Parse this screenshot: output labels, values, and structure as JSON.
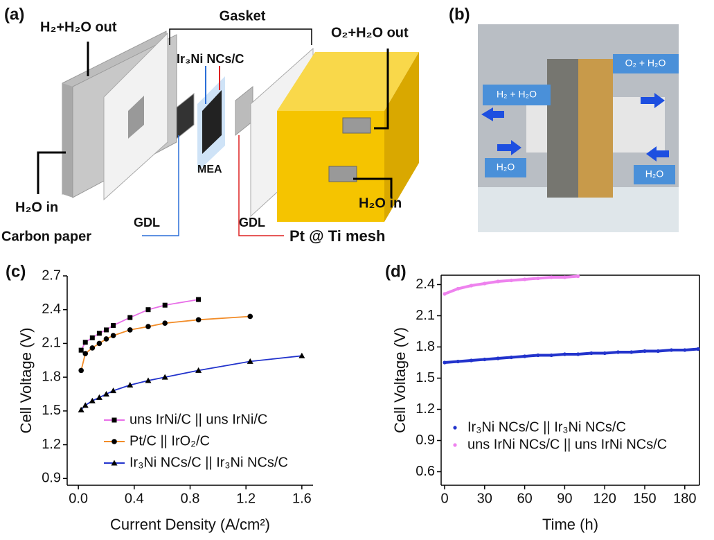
{
  "diagram": {
    "panel_label": "(a)",
    "h2_out": "H₂+H₂O out",
    "gasket": "Gasket",
    "catalyst": "Ir₃Ni NCs/C",
    "o2_out": "O₂+H₂O out",
    "mea": "MEA",
    "h2o_in_left": "H₂O in",
    "gdl_left": "GDL",
    "carbon_paper": "Carbon paper",
    "gdl_right": "GDL",
    "pt_mesh": "Pt @ Ti mesh",
    "h2o_in_right": "H₂O in"
  },
  "photo": {
    "panel_label": "(b)",
    "o2_label": "O₂ + H₂O",
    "h2_label": "H₂ + H₂O",
    "h2o_left": "H₂O",
    "h2o_right": "H₂O"
  },
  "chart_data": [
    {
      "type": "line",
      "panel_label": "(c)",
      "x_label": "Current Density (A/cm²)",
      "y_label": "Cell Voltage (V)",
      "xlim": [
        -0.08,
        1.68
      ],
      "ylim": [
        0.84,
        2.7
      ],
      "xticks": [
        {
          "value": 0,
          "label": "0.0"
        },
        0.4,
        0.8,
        1.2,
        1.6
      ],
      "yticks": [
        0.9,
        1.2,
        1.5,
        1.8,
        2.1,
        2.4,
        2.7
      ],
      "box": false,
      "series": [
        {
          "name": "uns IrNi/C || uns IrNi/C",
          "color": "#e86ee8",
          "marker": "square",
          "x": [
            0.02,
            0.05,
            0.1,
            0.15,
            0.2,
            0.25,
            0.37,
            0.5,
            0.62,
            0.86
          ],
          "values": [
            2.04,
            2.11,
            2.15,
            2.19,
            2.22,
            2.26,
            2.33,
            2.4,
            2.44,
            2.49
          ]
        },
        {
          "name": "Pt/C || IrO₂/C",
          "color": "#f28c28",
          "marker": "circle",
          "x": [
            0.02,
            0.05,
            0.1,
            0.15,
            0.2,
            0.25,
            0.37,
            0.5,
            0.62,
            0.86,
            1.23
          ],
          "values": [
            1.86,
            2.01,
            2.06,
            2.1,
            2.14,
            2.17,
            2.22,
            2.25,
            2.28,
            2.31,
            2.34
          ]
        },
        {
          "name": "Ir₃Ni NCs/C || Ir₃Ni NCs/C",
          "color": "#2233cc",
          "marker": "triangle",
          "x": [
            0.02,
            0.05,
            0.1,
            0.15,
            0.2,
            0.25,
            0.37,
            0.5,
            0.62,
            0.86,
            1.23,
            1.6
          ],
          "values": [
            1.51,
            1.55,
            1.59,
            1.62,
            1.65,
            1.68,
            1.73,
            1.77,
            1.8,
            1.86,
            1.94,
            1.99
          ]
        }
      ]
    },
    {
      "type": "line",
      "panel_label": "(d)",
      "x_label": "Time (h)",
      "y_label": "Cell Voltage (V)",
      "xlim": [
        -2.6,
        191
      ],
      "ylim": [
        0.47,
        2.49
      ],
      "xticks": [
        0,
        30,
        60,
        90,
        120,
        150,
        180
      ],
      "yticks": [
        0.6,
        0.9,
        1.2,
        1.5,
        1.8,
        2.1,
        2.4
      ],
      "box": true,
      "series": [
        {
          "name": "Ir₃Ni NCs/C || Ir₃Ni NCs/C",
          "color": "#2233cc",
          "marker": "dot",
          "x": [
            0,
            10,
            20,
            30,
            40,
            50,
            60,
            70,
            80,
            90,
            100,
            110,
            120,
            130,
            140,
            150,
            160,
            170,
            180,
            190
          ],
          "values": [
            1.65,
            1.66,
            1.67,
            1.68,
            1.69,
            1.7,
            1.71,
            1.72,
            1.72,
            1.73,
            1.73,
            1.74,
            1.74,
            1.75,
            1.75,
            1.76,
            1.76,
            1.77,
            1.77,
            1.78
          ]
        },
        {
          "name": "uns IrNi NCs/C || uns IrNi NCs/C",
          "color": "#ee82ee",
          "marker": "dot",
          "x": [
            0,
            10,
            20,
            30,
            40,
            50,
            60,
            70,
            80,
            90,
            100
          ],
          "values": [
            2.31,
            2.36,
            2.39,
            2.41,
            2.43,
            2.44,
            2.45,
            2.46,
            2.47,
            2.47,
            2.48
          ]
        }
      ]
    }
  ]
}
